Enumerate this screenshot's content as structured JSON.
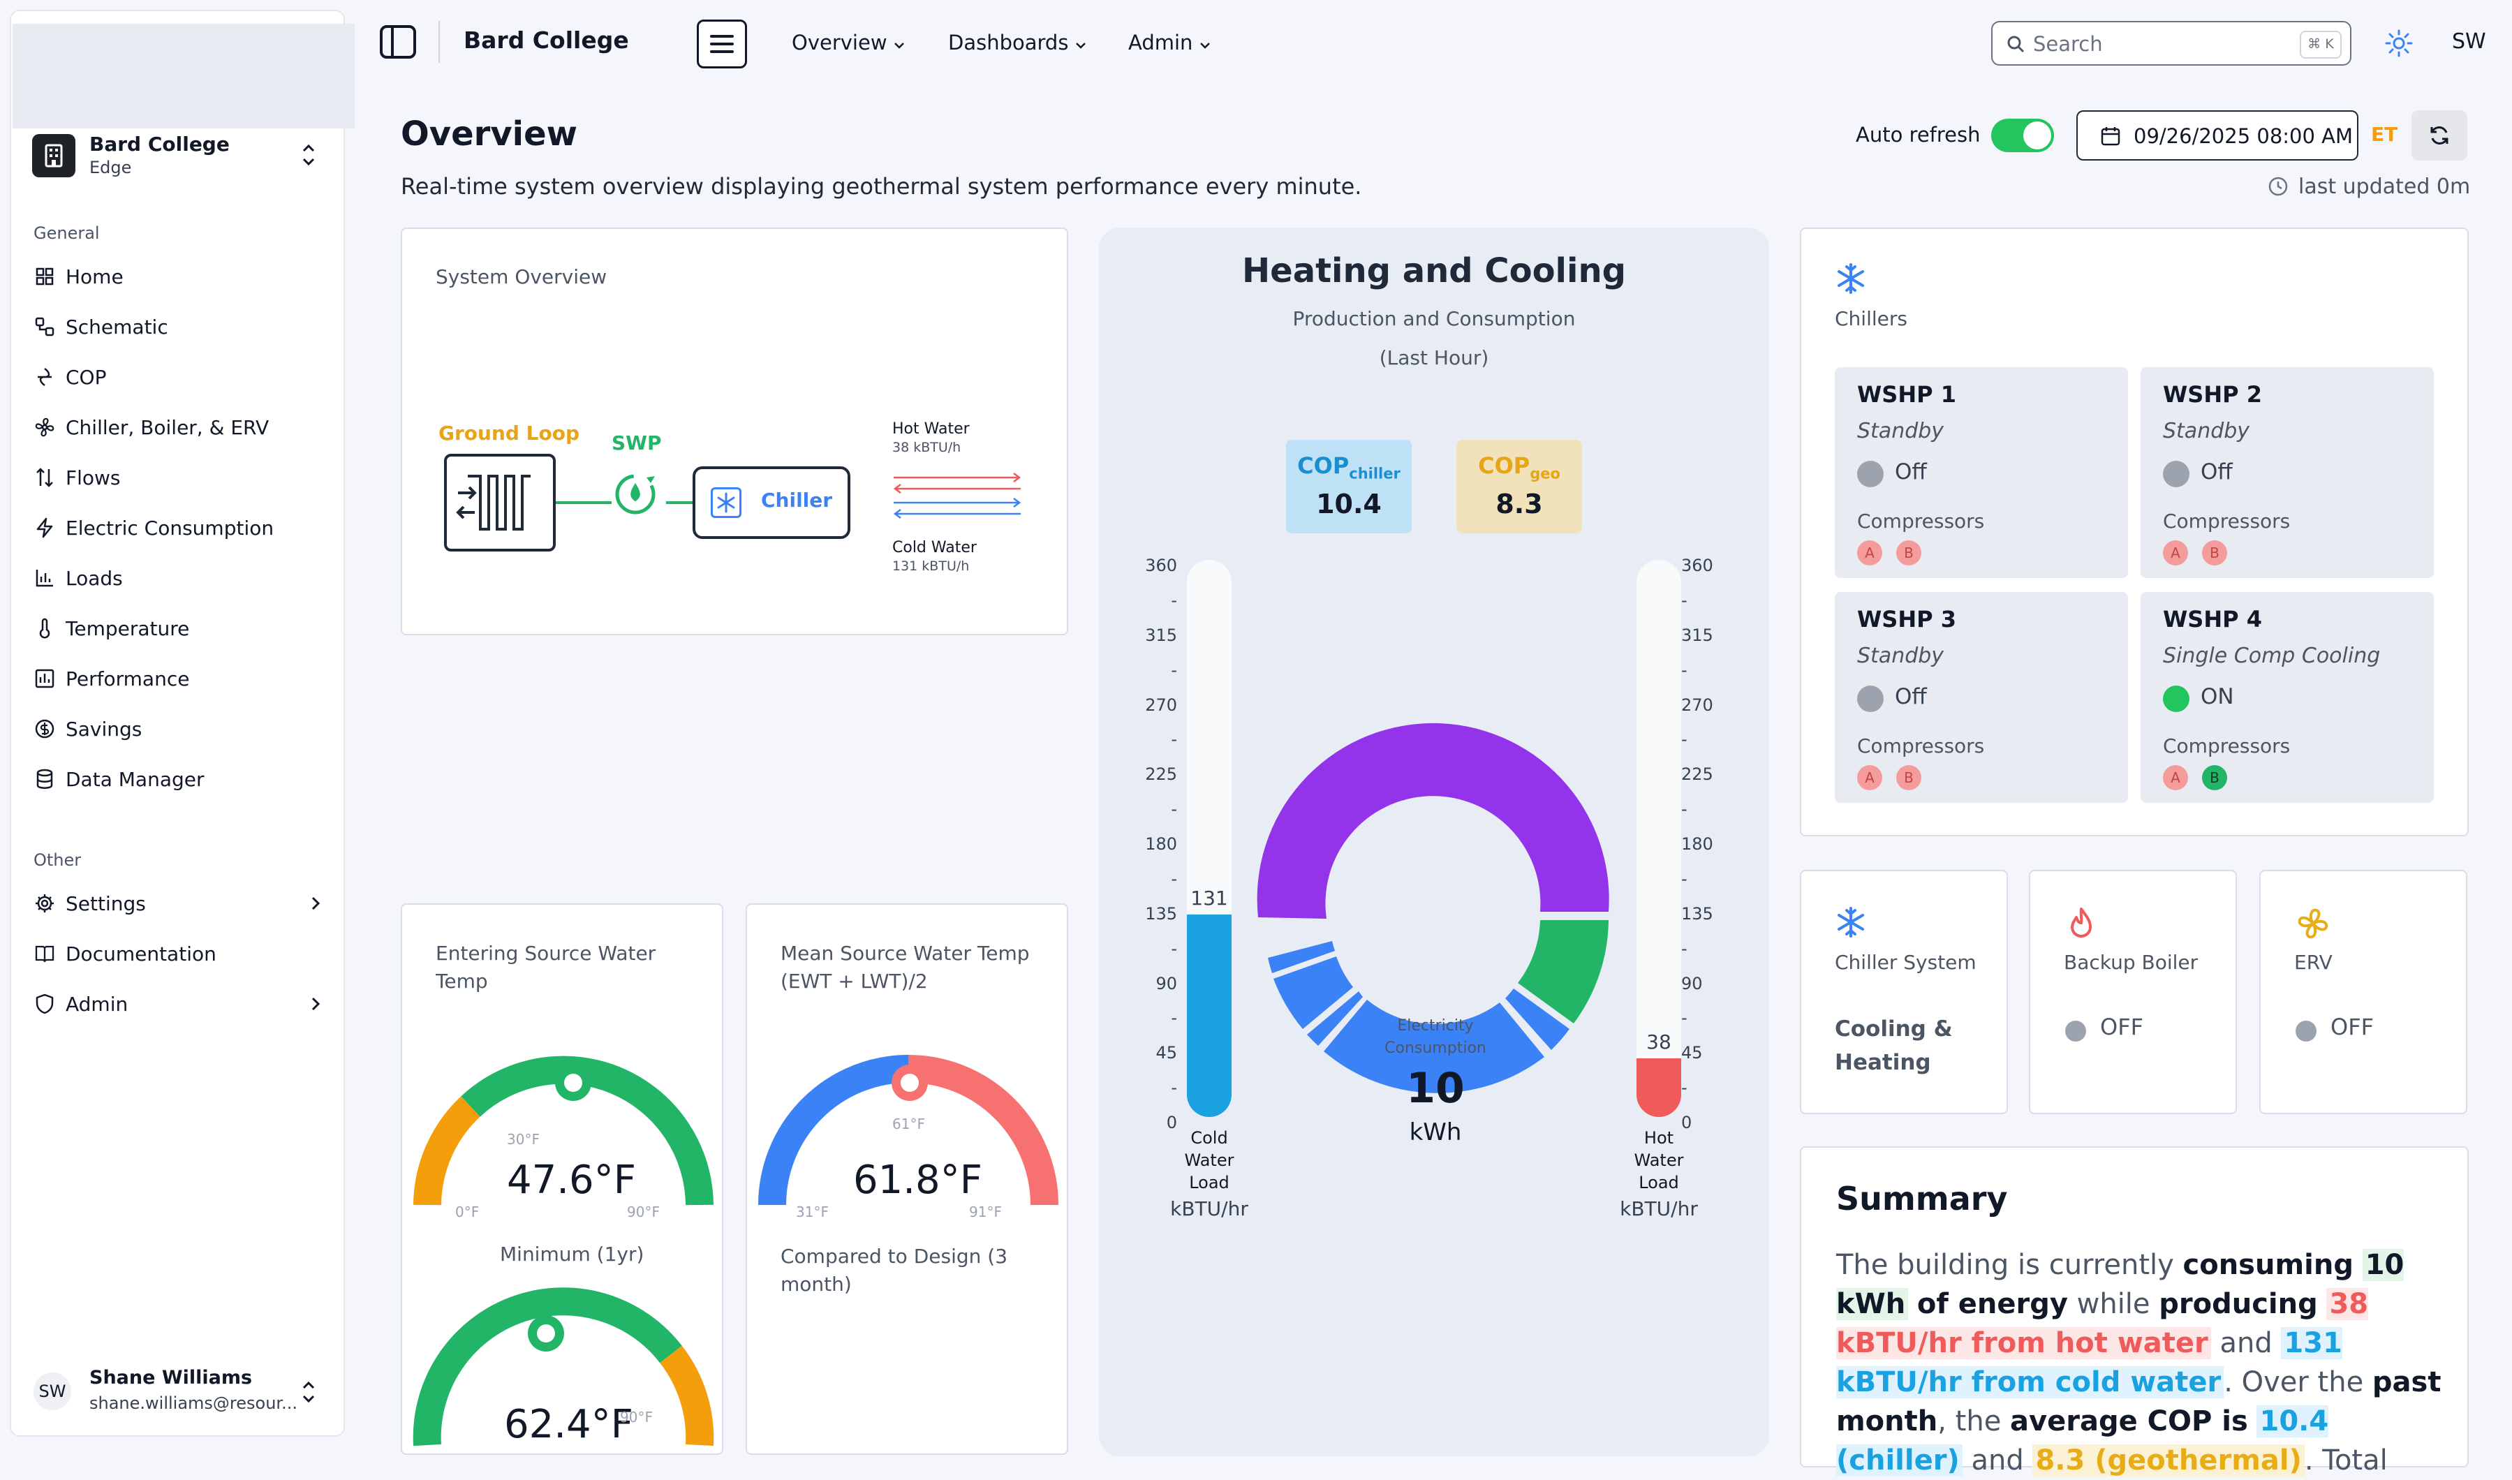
{
  "app": {
    "title": "Bard College"
  },
  "org": {
    "name": "Bard College",
    "subtitle": "Edge"
  },
  "sidebar": {
    "general_label": "General",
    "items": [
      {
        "label": "Home",
        "icon": "grid-icon"
      },
      {
        "label": "Schematic",
        "icon": "schematic-icon"
      },
      {
        "label": "COP",
        "icon": "cop-icon"
      },
      {
        "label": "Chiller, Boiler, & ERV",
        "icon": "fan-icon"
      },
      {
        "label": "Flows",
        "icon": "flows-icon"
      },
      {
        "label": "Electric Consumption",
        "icon": "bolt-icon"
      },
      {
        "label": "Loads",
        "icon": "bar-chart-icon"
      },
      {
        "label": "Temperature",
        "icon": "thermometer-icon"
      },
      {
        "label": "Performance",
        "icon": "performance-icon"
      },
      {
        "label": "Savings",
        "icon": "dollar-icon"
      },
      {
        "label": "Data Manager",
        "icon": "database-icon"
      }
    ],
    "other_label": "Other",
    "other_items": [
      {
        "label": "Settings",
        "icon": "gear-icon"
      },
      {
        "label": "Documentation",
        "icon": "book-icon"
      },
      {
        "label": "Admin",
        "icon": "shield-icon"
      }
    ]
  },
  "user": {
    "initials": "SW",
    "name": "Shane Williams",
    "email": "shane.williams@resour..."
  },
  "topbar": {
    "nav": [
      "Overview",
      "Dashboards",
      "Admin"
    ],
    "search_placeholder": "Search",
    "search_shortcut": "⌘ K",
    "user_initials": "SW"
  },
  "header": {
    "title": "Overview",
    "description": "Real-time system overview displaying geothermal system performance every minute.",
    "auto_refresh_label": "Auto refresh",
    "auto_refresh_on": true,
    "datetime": "09/26/2025 08:00 AM",
    "timezone": "ET",
    "last_updated": "last updated 0m"
  },
  "system_overview": {
    "title": "System Overview",
    "ground_loop": "Ground Loop",
    "swp": "SWP",
    "chiller": "Chiller",
    "hot_water": "Hot Water",
    "hot_water_value": "38 kBTU/h",
    "cold_water": "Cold Water",
    "cold_water_value": "131 kBTU/h"
  },
  "gauges": [
    {
      "title": "Entering Source Water Temp",
      "value": "47.6°F",
      "min_label": "0°F",
      "max_label": "90°F",
      "marker_label": "30°F",
      "sub_title": "Minimum (1yr)",
      "sub_value": "62.4°F",
      "sub_marker_label": "90°F"
    },
    {
      "title": "Mean Source Water Temp (EWT + LWT)/2",
      "value": "61.8°F",
      "min_label": "31°F",
      "max_label": "91°F",
      "marker_label": "61°F",
      "sub_title": "Compared to Design (3 month)"
    }
  ],
  "heating_cooling": {
    "title": "Heating and Cooling",
    "subtitle": "Production and Consumption",
    "subtitle2": "(Last Hour)",
    "cop_chiller_label": "COP",
    "cop_chiller_sub": "chiller",
    "cop_chiller": "10.4",
    "cop_geo_label": "COP",
    "cop_geo_sub": "geo",
    "cop_geo": "8.3",
    "donut_label1": "Electricity",
    "donut_label2": "Consumption",
    "donut_value": "10",
    "donut_unit": "kWh",
    "scale_ticks": [
      "360",
      "-",
      "315",
      "-",
      "270",
      "-",
      "225",
      "-",
      "180",
      "-",
      "135",
      "-",
      "90",
      "-",
      "45",
      "-",
      "0"
    ],
    "scale_max": 360,
    "cold_value": 131,
    "hot_value": 38,
    "cold_value_label": "131",
    "hot_value_label": "38",
    "cold_caption": [
      "Cold",
      "Water",
      "Load"
    ],
    "hot_caption": [
      "Hot",
      "Water",
      "Load"
    ],
    "unit_caption": "kBTU/hr",
    "colors": {
      "purple": "#9333ea",
      "green": "#22b567",
      "blue": "#3b82f6",
      "cold": "#1aa1e0",
      "hot": "#f05a5a"
    }
  },
  "chillers": {
    "title": "Chillers",
    "compressors_label": "Compressors",
    "units": [
      {
        "name": "WSHP 1",
        "mode": "Standby",
        "state": "Off",
        "on": false,
        "comp_a_on": false,
        "comp_b_on": false
      },
      {
        "name": "WSHP 2",
        "mode": "Standby",
        "state": "Off",
        "on": false,
        "comp_a_on": false,
        "comp_b_on": false
      },
      {
        "name": "WSHP 3",
        "mode": "Standby",
        "state": "Off",
        "on": false,
        "comp_a_on": false,
        "comp_b_on": false
      },
      {
        "name": "WSHP 4",
        "mode": "Single Comp Cooling",
        "state": "ON",
        "on": true,
        "comp_a_on": false,
        "comp_b_on": true
      }
    ],
    "comp_a": "A",
    "comp_b": "B"
  },
  "systems": [
    {
      "title": "Chiller System",
      "status": "Cooling & Heating",
      "icon": "snowflake-icon"
    },
    {
      "title": "Backup Boiler",
      "status": "OFF",
      "icon": "flame-icon"
    },
    {
      "title": "ERV",
      "status": "OFF",
      "icon": "fan-icon"
    }
  ],
  "summary": {
    "title": "Summary",
    "t1": "The building is currently ",
    "b1": "consuming",
    "h1": "10 kWh",
    "b2": "of energy",
    "t2": " while ",
    "b3": "producing",
    "h2": "38 kBTU/hr from hot water",
    "t3": " and ",
    "h3": "131 kBTU/hr from cold water",
    "t4": ". Over the ",
    "b4": "past month",
    "t5": ", the ",
    "b5": "average COP is",
    "h4": "10.4 (chiller)",
    "t6": " and ",
    "h5": "8.3 (geothermal)",
    "t7": ". Total"
  }
}
